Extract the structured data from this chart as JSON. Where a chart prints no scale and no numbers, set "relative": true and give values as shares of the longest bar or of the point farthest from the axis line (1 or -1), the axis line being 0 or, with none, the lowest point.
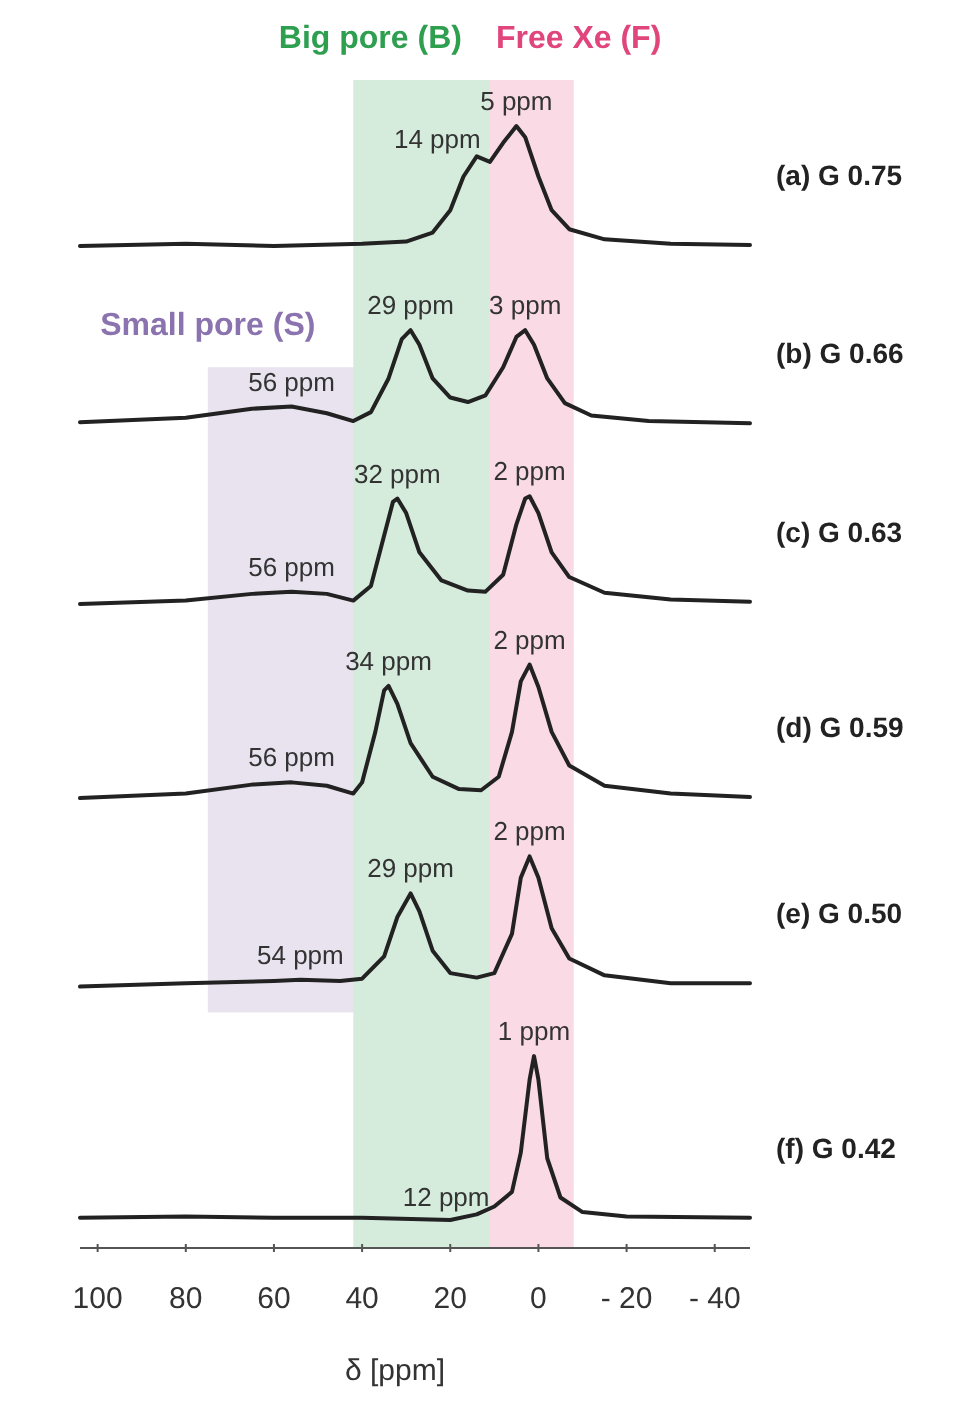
{
  "chart_data": {
    "type": "line",
    "relative": true,
    "xlabel": "δ [ppm]",
    "xlim": [
      104,
      -48
    ],
    "xticks": [
      100,
      80,
      60,
      40,
      20,
      0,
      {
        "value": -20,
        "label": "- 20"
      },
      {
        "value": -40,
        "label": "- 40"
      }
    ],
    "legend": false,
    "marker": "none",
    "line_style": "solid",
    "series": [
      {
        "name": "(a) G 0.75",
        "color": "#222222",
        "x": [
          104,
          80,
          60,
          40,
          30,
          24,
          20,
          17,
          14,
          11,
          8,
          5,
          3,
          0,
          -3,
          -7,
          -15,
          -30,
          -48
        ],
        "values": [
          0.893,
          0.895,
          0.893,
          0.895,
          0.897,
          0.905,
          0.925,
          0.955,
          0.973,
          0.968,
          0.985,
          1.0,
          0.99,
          0.955,
          0.925,
          0.908,
          0.899,
          0.895,
          0.894
        ]
      },
      {
        "name": "(b) G 0.66",
        "color": "#222222",
        "x": [
          104,
          80,
          65,
          56,
          48,
          42,
          38,
          34,
          31,
          29,
          27,
          24,
          20,
          16,
          12,
          8,
          5,
          3,
          1,
          -2,
          -6,
          -12,
          -25,
          -48
        ],
        "values": [
          0.736,
          0.74,
          0.748,
          0.75,
          0.744,
          0.737,
          0.745,
          0.775,
          0.81,
          0.818,
          0.805,
          0.775,
          0.758,
          0.754,
          0.76,
          0.785,
          0.812,
          0.818,
          0.805,
          0.775,
          0.753,
          0.742,
          0.737,
          0.735
        ]
      },
      {
        "name": "(c) G 0.63",
        "color": "#222222",
        "x": [
          104,
          80,
          65,
          56,
          48,
          42,
          38,
          35,
          33,
          32,
          30,
          27,
          22,
          16,
          12,
          8,
          5,
          3,
          2,
          0,
          -3,
          -7,
          -15,
          -30,
          -48
        ],
        "values": [
          0.574,
          0.577,
          0.583,
          0.585,
          0.583,
          0.577,
          0.59,
          0.635,
          0.665,
          0.668,
          0.655,
          0.62,
          0.595,
          0.586,
          0.585,
          0.6,
          0.645,
          0.668,
          0.67,
          0.655,
          0.62,
          0.598,
          0.584,
          0.578,
          0.576
        ]
      },
      {
        "name": "(d) G 0.59",
        "color": "#222222",
        "x": [
          104,
          80,
          65,
          56,
          48,
          42,
          40,
          37,
          35,
          34,
          32,
          29,
          24,
          18,
          13,
          9,
          6,
          4,
          2,
          0,
          -3,
          -7,
          -15,
          -30,
          -48
        ],
        "values": [
          0.401,
          0.405,
          0.413,
          0.415,
          0.412,
          0.405,
          0.415,
          0.46,
          0.497,
          0.501,
          0.485,
          0.45,
          0.42,
          0.409,
          0.408,
          0.42,
          0.46,
          0.505,
          0.52,
          0.5,
          0.46,
          0.43,
          0.412,
          0.405,
          0.402
        ]
      },
      {
        "name": "(e) G 0.50",
        "color": "#222222",
        "x": [
          104,
          80,
          60,
          54,
          45,
          40,
          35,
          32,
          29,
          27,
          24,
          20,
          14,
          10,
          6,
          4,
          2,
          0,
          -3,
          -7,
          -15,
          -30,
          -48
        ],
        "values": [
          0.233,
          0.236,
          0.238,
          0.239,
          0.238,
          0.24,
          0.26,
          0.295,
          0.316,
          0.3,
          0.265,
          0.245,
          0.241,
          0.245,
          0.28,
          0.33,
          0.349,
          0.33,
          0.285,
          0.258,
          0.243,
          0.236,
          0.236
        ]
      },
      {
        "name": "(f) G 0.42",
        "color": "#222222",
        "x": [
          104,
          80,
          60,
          40,
          20,
          14,
          10,
          6,
          4,
          2,
          1,
          0,
          -2,
          -5,
          -10,
          -20,
          -48
        ],
        "values": [
          0.027,
          0.028,
          0.027,
          0.027,
          0.025,
          0.03,
          0.037,
          0.05,
          0.085,
          0.15,
          0.171,
          0.15,
          0.08,
          0.045,
          0.032,
          0.028,
          0.027
        ]
      }
    ],
    "bands": [
      {
        "axis": "x",
        "from": 42,
        "to": 11,
        "label": "Big pore (B)",
        "color": "#2e9e4f"
      },
      {
        "axis": "x",
        "from": 11,
        "to": -8,
        "label": "Free Xe (F)",
        "color": "#e0457b"
      },
      {
        "axis": "x",
        "from": 75,
        "to": 42,
        "label": "Small pore (S)",
        "color": "#8b73b0"
      }
    ],
    "annotations": [
      {
        "text": "5 ppm",
        "x": 5,
        "y": 1.0
      },
      {
        "text": "14 ppm",
        "x": 14,
        "y": 0.973
      },
      {
        "text": "29 ppm",
        "x": 29,
        "y": 0.818
      },
      {
        "text": "3 ppm",
        "x": 3,
        "y": 0.818
      },
      {
        "text": "56 ppm",
        "x": 56,
        "y": 0.75
      },
      {
        "text": "32 ppm",
        "x": 32,
        "y": 0.668
      },
      {
        "text": "2 ppm",
        "x": 2,
        "y": 0.67
      },
      {
        "text": "56 ppm",
        "x": 56,
        "y": 0.585
      },
      {
        "text": "34 ppm",
        "x": 34,
        "y": 0.501
      },
      {
        "text": "2 ppm",
        "x": 2,
        "y": 0.52
      },
      {
        "text": "56 ppm",
        "x": 56,
        "y": 0.415
      },
      {
        "text": "29 ppm",
        "x": 29,
        "y": 0.316
      },
      {
        "text": "2 ppm",
        "x": 2,
        "y": 0.349
      },
      {
        "text": "54 ppm",
        "x": 54,
        "y": 0.239
      },
      {
        "text": "1 ppm",
        "x": 1,
        "y": 0.171
      },
      {
        "text": "12 ppm",
        "x": 12,
        "y": 0.03
      }
    ]
  }
}
